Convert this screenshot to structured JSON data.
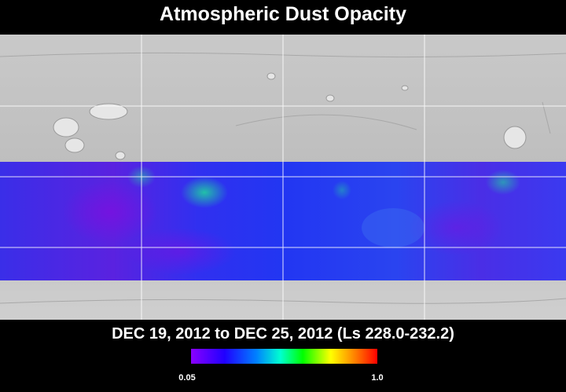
{
  "header": {
    "title": "Atmospheric Dust Opacity"
  },
  "map": {
    "date_range": "DEC 19, 2012 to DEC 25, 2012 (Ls 228.0-232.2)"
  },
  "colorbar": {
    "min_label": "0.05",
    "max_label": "1.0"
  }
}
